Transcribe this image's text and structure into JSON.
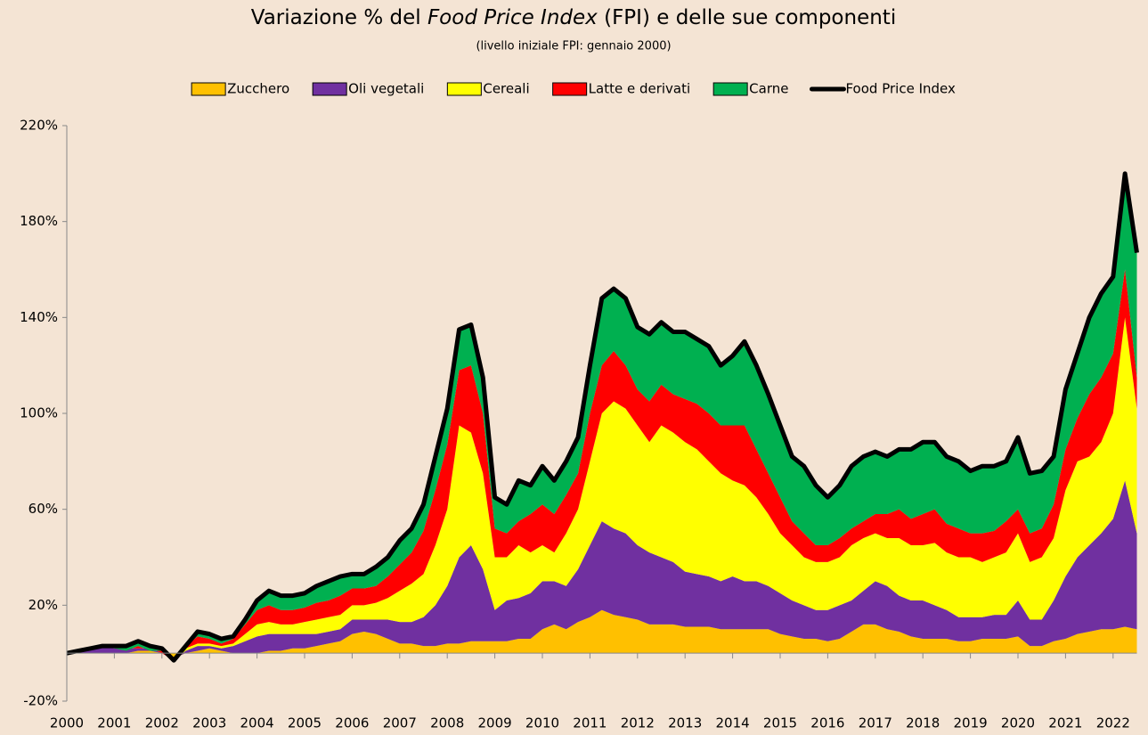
{
  "chart_data": {
    "type": "area",
    "stacked": true,
    "title": [
      "Variazione % del ",
      "Food Price Index",
      " (FPI) e delle sue componenti"
    ],
    "subtitle": "(livello iniziale FPI: gennaio 2000)",
    "legend": "top",
    "categories": [
      "2000",
      null,
      null,
      null,
      "2001",
      null,
      null,
      null,
      "2002",
      null,
      null,
      null,
      "2003",
      null,
      null,
      null,
      "2004",
      null,
      null,
      null,
      "2005",
      null,
      null,
      null,
      "2006",
      null,
      null,
      null,
      "2007",
      null,
      null,
      null,
      "2008",
      null,
      null,
      null,
      "2009",
      null,
      null,
      null,
      "2010",
      null,
      null,
      null,
      "2011",
      null,
      null,
      null,
      "2012",
      null,
      null,
      null,
      "2013",
      null,
      null,
      null,
      "2014",
      null,
      null,
      null,
      "2015",
      null,
      null,
      null,
      "2016",
      null,
      null,
      null,
      "2017",
      null,
      null,
      null,
      "2018",
      null,
      null,
      null,
      "2019",
      null,
      null,
      null,
      "2020",
      null,
      null,
      null,
      "2021",
      null,
      null,
      null,
      "2022",
      null,
      null
    ],
    "ylim": [
      -20,
      220
    ],
    "yticks": [
      {
        "value": -20,
        "label": "-20%"
      },
      {
        "value": 20,
        "label": "20%"
      },
      {
        "value": 60,
        "label": "60%"
      },
      {
        "value": 100,
        "label": "100%"
      },
      {
        "value": 140,
        "label": "140%"
      },
      {
        "value": 180,
        "label": "180%"
      },
      {
        "value": 220,
        "label": "220%"
      }
    ],
    "series": [
      {
        "name": "Zucchero",
        "color": "#ffc000",
        "values": [
          0,
          0,
          0,
          0,
          0,
          0,
          1,
          1,
          0,
          -2,
          0,
          1,
          2,
          1,
          0,
          0,
          0,
          1,
          1,
          2,
          2,
          3,
          4,
          5,
          8,
          9,
          8,
          6,
          4,
          4,
          3,
          3,
          4,
          4,
          5,
          5,
          5,
          5,
          6,
          6,
          10,
          12,
          10,
          13,
          15,
          18,
          16,
          15,
          14,
          12,
          12,
          12,
          11,
          11,
          11,
          10,
          10,
          10,
          10,
          10,
          8,
          7,
          6,
          6,
          5,
          6,
          9,
          12,
          12,
          10,
          9,
          7,
          6,
          6,
          6,
          5,
          5,
          6,
          6,
          6,
          7,
          3,
          3,
          5,
          6,
          8,
          9,
          10,
          10,
          11,
          10
        ]
      },
      {
        "name": "Oli vegetali",
        "color": "#7030a0",
        "values": [
          0,
          1,
          2,
          3,
          2,
          2,
          1,
          1,
          0,
          -1,
          1,
          2,
          1,
          1,
          3,
          5,
          7,
          7,
          7,
          6,
          6,
          5,
          5,
          5,
          6,
          5,
          6,
          8,
          9,
          9,
          12,
          17,
          24,
          36,
          40,
          30,
          13,
          17,
          17,
          19,
          20,
          18,
          18,
          22,
          30,
          37,
          36,
          35,
          31,
          30,
          28,
          26,
          23,
          22,
          21,
          20,
          22,
          20,
          20,
          18,
          17,
          15,
          14,
          12,
          13,
          14,
          13,
          14,
          18,
          18,
          15,
          15,
          16,
          14,
          12,
          10,
          10,
          9,
          10,
          10,
          15,
          11,
          11,
          17,
          26,
          32,
          36,
          40,
          46,
          61,
          40
        ]
      },
      {
        "name": "Cereali",
        "color": "#ffff00",
        "values": [
          0,
          0,
          0,
          0,
          0,
          0,
          0,
          0,
          0,
          0,
          1,
          1,
          1,
          1,
          1,
          3,
          5,
          5,
          4,
          4,
          5,
          6,
          6,
          6,
          6,
          6,
          7,
          9,
          13,
          16,
          18,
          25,
          32,
          55,
          47,
          40,
          22,
          18,
          22,
          17,
          15,
          12,
          22,
          25,
          35,
          45,
          53,
          52,
          50,
          46,
          55,
          54,
          54,
          52,
          48,
          45,
          40,
          40,
          35,
          30,
          25,
          23,
          20,
          20,
          20,
          20,
          23,
          22,
          20,
          20,
          24,
          23,
          23,
          26,
          24,
          25,
          25,
          23,
          24,
          26,
          28,
          24,
          26,
          26,
          36,
          40,
          37,
          38,
          44,
          68,
          52
        ]
      },
      {
        "name": "Latte e derivati",
        "color": "#ff0000",
        "values": [
          0,
          0,
          0,
          0,
          0,
          -1,
          1,
          -1,
          1,
          0,
          1,
          3,
          2,
          1,
          2,
          4,
          6,
          7,
          6,
          6,
          6,
          7,
          7,
          8,
          7,
          7,
          7,
          9,
          11,
          13,
          18,
          23,
          27,
          23,
          28,
          25,
          12,
          10,
          10,
          16,
          17,
          16,
          16,
          15,
          20,
          20,
          21,
          18,
          15,
          17,
          17,
          16,
          18,
          19,
          20,
          20,
          23,
          25,
          20,
          17,
          15,
          10,
          10,
          7,
          7,
          8,
          7,
          7,
          8,
          10,
          12,
          11,
          13,
          14,
          12,
          12,
          10,
          12,
          11,
          13,
          10,
          12,
          12,
          14,
          17,
          18,
          26,
          27,
          25,
          20,
          13
        ]
      },
      {
        "name": "Carne",
        "color": "#00b050",
        "values": [
          0,
          0,
          0,
          0,
          1,
          2,
          2,
          2,
          1,
          0,
          0,
          2,
          2,
          2,
          1,
          2,
          4,
          6,
          6,
          6,
          6,
          7,
          8,
          8,
          6,
          6,
          8,
          8,
          10,
          10,
          11,
          14,
          15,
          17,
          17,
          15,
          13,
          12,
          17,
          12,
          16,
          14,
          14,
          15,
          20,
          28,
          26,
          28,
          26,
          28,
          26,
          26,
          28,
          27,
          28,
          25,
          29,
          35,
          35,
          33,
          30,
          27,
          28,
          25,
          20,
          22,
          26,
          27,
          26,
          24,
          25,
          29,
          30,
          28,
          28,
          28,
          26,
          28,
          27,
          25,
          30,
          25,
          24,
          20,
          25,
          27,
          32,
          35,
          32,
          40,
          52
        ]
      },
      {
        "name": "Food Price Index",
        "color": "#000000",
        "type": "line",
        "values": [
          0,
          1,
          2,
          3,
          3,
          3,
          5,
          3,
          2,
          -3,
          3,
          9,
          8,
          6,
          7,
          14,
          22,
          26,
          24,
          24,
          25,
          28,
          30,
          32,
          33,
          33,
          36,
          40,
          47,
          52,
          62,
          82,
          102,
          135,
          137,
          115,
          65,
          62,
          72,
          70,
          78,
          72,
          80,
          90,
          120,
          148,
          152,
          148,
          136,
          133,
          138,
          134,
          134,
          131,
          128,
          120,
          124,
          130,
          120,
          108,
          95,
          82,
          78,
          70,
          65,
          70,
          78,
          82,
          84,
          82,
          85,
          85,
          88,
          88,
          82,
          80,
          76,
          78,
          78,
          80,
          90,
          75,
          76,
          82,
          110,
          125,
          140,
          150,
          157,
          200,
          167
        ]
      }
    ]
  }
}
